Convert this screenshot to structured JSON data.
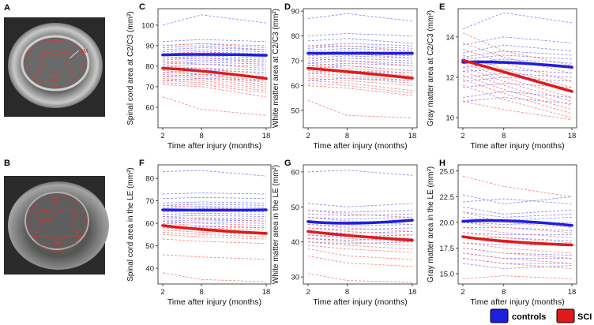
{
  "colors": {
    "controls": "#1f1fe0",
    "sci": "#e01a1a",
    "controls_light": "#6f6ff0",
    "sci_light": "#f06a6a"
  },
  "mri_panels": [
    {
      "letter": "A",
      "labels": [
        "SC",
        "GM",
        "WM"
      ]
    },
    {
      "letter": "B",
      "labels": [
        "SC",
        "GM",
        "WM"
      ]
    }
  ],
  "legend": {
    "controls": "controls",
    "sci": "SCI"
  },
  "chart_data": [
    {
      "letter": "C",
      "type": "line",
      "ylabel": "Spinal cord area at C2/C3 (mm²)",
      "xlabel": "Time after injury (months)",
      "x": [
        2,
        8,
        18
      ],
      "xticks": [
        "2",
        "8",
        "18"
      ],
      "ylim": [
        50,
        108
      ],
      "yticks": [
        60,
        70,
        80,
        90,
        100
      ],
      "series": [
        {
          "name": "controls",
          "values": [
            85.5,
            85.8,
            85.3
          ]
        },
        {
          "name": "SCI",
          "values": [
            79,
            77.5,
            74
          ]
        }
      ],
      "controls_individual": [
        [
          100,
          105,
          101
        ],
        [
          92,
          93,
          92
        ],
        [
          90,
          91,
          89
        ],
        [
          89,
          90,
          88
        ],
        [
          88,
          89,
          88
        ],
        [
          87,
          88,
          87
        ],
        [
          86,
          87,
          86
        ],
        [
          85,
          86,
          85
        ],
        [
          84,
          85,
          84
        ],
        [
          83,
          84,
          83
        ],
        [
          82,
          83,
          82
        ],
        [
          81,
          82,
          81
        ],
        [
          80,
          81,
          80
        ],
        [
          79,
          79,
          78
        ],
        [
          77,
          78,
          77
        ],
        [
          75,
          76,
          75
        ],
        [
          73,
          74,
          73
        ]
      ],
      "sci_individual": [
        [
          90,
          91,
          90
        ],
        [
          86,
          87,
          85
        ],
        [
          84,
          84,
          82
        ],
        [
          82,
          81,
          79
        ],
        [
          80,
          79,
          76
        ],
        [
          79,
          77,
          74
        ],
        [
          78,
          76,
          73
        ],
        [
          77,
          76,
          72
        ],
        [
          76,
          75,
          71
        ],
        [
          75,
          74,
          70
        ],
        [
          74,
          73,
          69
        ],
        [
          73,
          72,
          68
        ],
        [
          72,
          71,
          67
        ],
        [
          71,
          70,
          65
        ],
        [
          65,
          59,
          56
        ]
      ]
    },
    {
      "letter": "D",
      "type": "line",
      "ylabel": "White matter area at C2/C3 (mm²)",
      "xlabel": "Time after injury (months)",
      "x": [
        2,
        8,
        18
      ],
      "xticks": [
        "2",
        "8",
        "18"
      ],
      "ylim": [
        43,
        91
      ],
      "yticks": [
        50,
        60,
        70,
        80,
        90
      ],
      "series": [
        {
          "name": "controls",
          "values": [
            73,
            73,
            73
          ]
        },
        {
          "name": "SCI",
          "values": [
            67,
            65.5,
            63
          ]
        }
      ],
      "controls_individual": [
        [
          87,
          89,
          86
        ],
        [
          80,
          81,
          80
        ],
        [
          78,
          79,
          77
        ],
        [
          76,
          77,
          76
        ],
        [
          75,
          76,
          75
        ],
        [
          74,
          75,
          74
        ],
        [
          73,
          74,
          73
        ],
        [
          72,
          73,
          72
        ],
        [
          71,
          72,
          71
        ],
        [
          70,
          71,
          70
        ],
        [
          69,
          70,
          69
        ],
        [
          68,
          69,
          68
        ],
        [
          67,
          68,
          66
        ],
        [
          65,
          66,
          65
        ],
        [
          62,
          63,
          62
        ]
      ],
      "sci_individual": [
        [
          76,
          76,
          74
        ],
        [
          73,
          73,
          71
        ],
        [
          71,
          70,
          68
        ],
        [
          69,
          68,
          66
        ],
        [
          68,
          67,
          65
        ],
        [
          67,
          66,
          64
        ],
        [
          66,
          65,
          63
        ],
        [
          65,
          64,
          62
        ],
        [
          64,
          63,
          61
        ],
        [
          63,
          62,
          60
        ],
        [
          62,
          61,
          58
        ],
        [
          61,
          60,
          57
        ],
        [
          60,
          59,
          56
        ],
        [
          54,
          48,
          47
        ]
      ]
    },
    {
      "letter": "E",
      "type": "line",
      "ylabel": "Gray matter area at C2/C3 (mm²)",
      "xlabel": "Time after injury (months)",
      "x": [
        2,
        8,
        18
      ],
      "xticks": [
        "2",
        "8",
        "18"
      ],
      "ylim": [
        9.5,
        15.4
      ],
      "yticks": [
        10,
        12,
        14
      ],
      "series": [
        {
          "name": "controls",
          "values": [
            12.75,
            12.75,
            12.5
          ]
        },
        {
          "name": "SCI",
          "values": [
            12.85,
            12.2,
            11.3
          ]
        }
      ],
      "controls_individual": [
        [
          14.4,
          15.2,
          14.7
        ],
        [
          13.6,
          14.0,
          13.7
        ],
        [
          13.2,
          13.6,
          13.3
        ],
        [
          13.0,
          13.3,
          13.1
        ],
        [
          12.9,
          13.1,
          12.9
        ],
        [
          12.7,
          12.9,
          12.7
        ],
        [
          12.5,
          12.7,
          12.5
        ],
        [
          12.3,
          12.4,
          12.2
        ],
        [
          12.0,
          12.2,
          12.0
        ],
        [
          11.8,
          12.0,
          11.8
        ],
        [
          11.5,
          11.7,
          11.5
        ],
        [
          11.0,
          11.3,
          11.0
        ],
        [
          10.8,
          11.0,
          10.7
        ]
      ],
      "sci_individual": [
        [
          14.2,
          13.3,
          12.6
        ],
        [
          13.7,
          13.0,
          12.2
        ],
        [
          13.4,
          12.7,
          11.8
        ],
        [
          13.1,
          12.4,
          11.5
        ],
        [
          12.9,
          12.2,
          11.3
        ],
        [
          12.7,
          12.0,
          11.0
        ],
        [
          12.5,
          11.8,
          10.8
        ],
        [
          12.3,
          11.6,
          10.6
        ],
        [
          12.1,
          11.4,
          10.4
        ],
        [
          11.9,
          11.2,
          10.2
        ],
        [
          11.6,
          10.9,
          10.0
        ],
        [
          10.8,
          10.4,
          9.9
        ]
      ]
    },
    {
      "letter": "F",
      "type": "line",
      "ylabel": "Spinal cord area in the LE (mm²)",
      "xlabel": "Time after injury (months)",
      "x": [
        2,
        8,
        18
      ],
      "xticks": [
        "2",
        "8",
        "18"
      ],
      "ylim": [
        33,
        86
      ],
      "yticks": [
        40,
        50,
        60,
        70,
        80
      ],
      "series": [
        {
          "name": "controls",
          "values": [
            66,
            65.8,
            66
          ]
        },
        {
          "name": "SCI",
          "values": [
            59,
            57,
            55.5
          ]
        }
      ],
      "controls_individual": [
        [
          83,
          83.5,
          81
        ],
        [
          73,
          73.5,
          73
        ],
        [
          71,
          71.5,
          71
        ],
        [
          69,
          69.5,
          69
        ],
        [
          68,
          68.5,
          68
        ],
        [
          67,
          67.5,
          67
        ],
        [
          66,
          66.5,
          66
        ],
        [
          65,
          65.5,
          65
        ],
        [
          64,
          64.5,
          64
        ],
        [
          63,
          63.5,
          63
        ],
        [
          62,
          62.5,
          62
        ],
        [
          61,
          61.5,
          61
        ],
        [
          60,
          60.5,
          60
        ],
        [
          58,
          58.5,
          58
        ]
      ],
      "sci_individual": [
        [
          68,
          67,
          66
        ],
        [
          63,
          62,
          61
        ],
        [
          61,
          60,
          59
        ],
        [
          60,
          59,
          58
        ],
        [
          59,
          58,
          57
        ],
        [
          58,
          57,
          56
        ],
        [
          57,
          56,
          55
        ],
        [
          56,
          55,
          54
        ],
        [
          55,
          54,
          53
        ],
        [
          53,
          52,
          51
        ],
        [
          46,
          45,
          44
        ],
        [
          38,
          35,
          34
        ]
      ]
    },
    {
      "letter": "G",
      "type": "line",
      "ylabel": "White matter area in the LE (mm²)",
      "xlabel": "Time after injury (months)",
      "x": [
        2,
        8,
        18
      ],
      "xticks": [
        "2",
        "8",
        "18"
      ],
      "ylim": [
        28,
        62
      ],
      "yticks": [
        30,
        40,
        50,
        60
      ],
      "series": [
        {
          "name": "controls",
          "values": [
            45.8,
            45.2,
            46.2
          ]
        },
        {
          "name": "SCI",
          "values": [
            43,
            41.7,
            40.5
          ]
        }
      ],
      "controls_individual": [
        [
          60,
          60.5,
          59
        ],
        [
          51,
          50,
          51
        ],
        [
          49,
          48.5,
          49
        ],
        [
          48,
          47.5,
          48
        ],
        [
          47,
          46.5,
          47
        ],
        [
          46,
          45.5,
          46
        ],
        [
          45,
          44.5,
          45
        ],
        [
          44,
          43.5,
          44
        ],
        [
          43,
          42.5,
          43
        ],
        [
          42,
          41.5,
          42
        ],
        [
          41,
          40.5,
          41
        ],
        [
          40,
          39.5,
          40
        ]
      ],
      "sci_individual": [
        [
          49,
          48,
          47
        ],
        [
          47,
          46,
          45
        ],
        [
          45,
          44,
          43
        ],
        [
          44,
          43,
          42
        ],
        [
          43,
          42,
          41
        ],
        [
          42,
          41,
          40
        ],
        [
          41,
          40,
          39
        ],
        [
          40,
          39,
          38
        ],
        [
          39,
          38,
          37
        ],
        [
          38,
          36,
          35
        ],
        [
          36,
          34,
          33
        ],
        [
          31,
          29,
          28.5
        ]
      ]
    },
    {
      "letter": "H",
      "type": "line",
      "ylabel": "Gray matter area in the LE (mm²)",
      "xlabel": "Time after injury (months)",
      "x": [
        2,
        8,
        18
      ],
      "xticks": [
        "2",
        "8",
        "18"
      ],
      "ylim": [
        14,
        25.6
      ],
      "yticks": [
        15.0,
        17.5,
        20.0,
        22.5,
        25.0
      ],
      "ytick_labels": [
        "15.0",
        "17.5",
        "20.0",
        "22.5",
        "25.0"
      ],
      "series": [
        {
          "name": "controls",
          "values": [
            20.1,
            20.2,
            19.7
          ]
        },
        {
          "name": "SCI",
          "values": [
            18.6,
            18.1,
            17.8
          ]
        }
      ],
      "controls_individual": [
        [
          22.7,
          21.8,
          22.5
        ],
        [
          22.0,
          22.3,
          21.8
        ],
        [
          21.5,
          20.8,
          21.2
        ],
        [
          21.0,
          20.5,
          20.8
        ],
        [
          20.5,
          20.2,
          20.5
        ],
        [
          20.0,
          19.8,
          20.0
        ],
        [
          19.5,
          19.5,
          19.2
        ],
        [
          19.0,
          18.8,
          18.8
        ],
        [
          18.5,
          18.5,
          18.2
        ],
        [
          18.0,
          17.8,
          17.8
        ],
        [
          17.5,
          17.0,
          16.8
        ],
        [
          17.0,
          16.5,
          16.5
        ],
        [
          16.5,
          16.0,
          16.0
        ],
        [
          16.0,
          15.5,
          15.8
        ]
      ],
      "sci_individual": [
        [
          24.5,
          23.5,
          22.5
        ],
        [
          21.0,
          20.0,
          19.5
        ],
        [
          20.0,
          19.5,
          19.0
        ],
        [
          19.5,
          19.0,
          18.5
        ],
        [
          19.0,
          18.5,
          18.0
        ],
        [
          18.5,
          18.0,
          17.8
        ],
        [
          18.0,
          17.5,
          17.0
        ],
        [
          17.5,
          17.0,
          16.5
        ],
        [
          17.0,
          16.5,
          16.0
        ],
        [
          16.5,
          16.0,
          15.5
        ],
        [
          14.5,
          14.8,
          14.5
        ]
      ]
    }
  ]
}
